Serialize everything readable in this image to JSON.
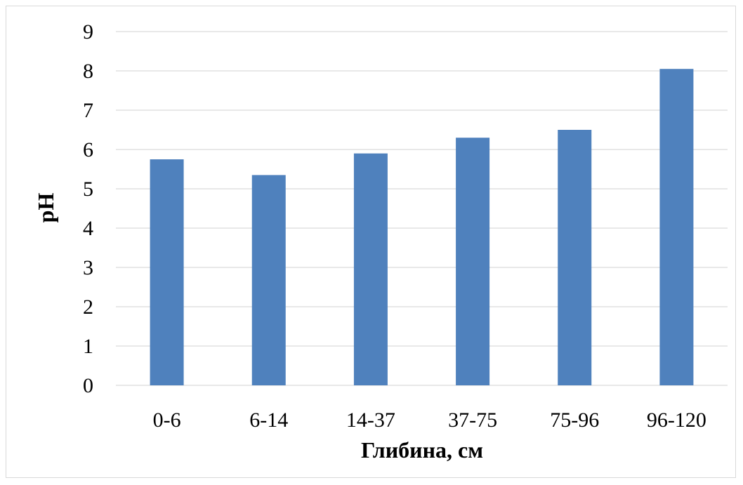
{
  "chart_data": {
    "type": "bar",
    "categories": [
      "0-6",
      "6-14",
      "14-37",
      "37-75",
      "75-96",
      "96-120"
    ],
    "values": [
      5.75,
      5.35,
      5.9,
      6.3,
      6.5,
      8.05
    ],
    "title": "",
    "xlabel": "Глибина, см",
    "ylabel": "pH",
    "ylim": [
      0,
      9
    ],
    "yticks": [
      0,
      1,
      2,
      3,
      4,
      5,
      6,
      7,
      8,
      9
    ],
    "grid": true,
    "legend": "none",
    "bar_color": "#4f81bd",
    "grid_color": "#d9d9d9"
  }
}
